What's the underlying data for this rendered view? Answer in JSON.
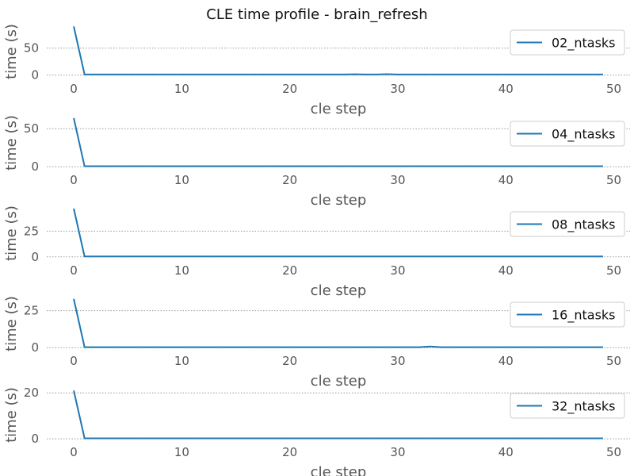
{
  "chart_data": {
    "type": "line",
    "title": "CLE time profile - brain_refresh",
    "xlabel": "cle step",
    "ylabel": "time (s)",
    "grid": "horizontal dotted",
    "legend_position": "top-right",
    "line_color": "#1f77b4",
    "x": [
      0,
      1,
      2,
      3,
      4,
      5,
      6,
      7,
      8,
      9,
      10,
      11,
      12,
      13,
      14,
      15,
      16,
      17,
      18,
      19,
      20,
      21,
      22,
      23,
      24,
      25,
      26,
      27,
      28,
      29,
      30,
      31,
      32,
      33,
      34,
      35,
      36,
      37,
      38,
      39,
      40,
      41,
      42,
      43,
      44,
      45,
      46,
      47,
      48,
      49
    ],
    "x_ticks": [
      0,
      10,
      20,
      30,
      40,
      50
    ],
    "xlim": [
      -2.5,
      51.5
    ],
    "panels": [
      {
        "series": [
          {
            "name": "02_ntasks",
            "values": [
              90,
              1,
              1,
              1,
              1,
              1,
              1,
              1,
              1,
              1,
              1,
              1,
              1,
              1,
              1,
              1,
              1,
              1,
              1,
              1,
              1,
              1,
              1,
              1,
              1,
              1,
              1.4,
              1,
              1,
              1.6,
              1,
              1,
              1,
              1,
              1,
              1,
              1,
              1,
              1,
              1,
              1,
              1,
              1,
              1,
              1,
              1,
              1,
              1,
              1,
              1
            ]
          }
        ],
        "ylim": [
          -5,
          95
        ],
        "y_ticks": [
          0,
          50
        ]
      },
      {
        "series": [
          {
            "name": "04_ntasks",
            "values": [
              64,
              0.6,
              0.6,
              0.6,
              0.6,
              0.6,
              0.6,
              0.6,
              0.6,
              0.6,
              0.6,
              0.6,
              0.6,
              0.6,
              0.6,
              0.6,
              0.6,
              0.6,
              0.6,
              0.6,
              0.6,
              0.6,
              0.6,
              0.6,
              0.6,
              0.6,
              0.6,
              0.6,
              0.6,
              0.6,
              0.6,
              0.6,
              0.6,
              0.6,
              0.6,
              0.6,
              0.6,
              0.6,
              0.6,
              0.6,
              0.6,
              0.6,
              0.6,
              0.6,
              0.6,
              0.6,
              0.6,
              0.6,
              0.6,
              0.6
            ]
          }
        ],
        "ylim": [
          -3,
          68
        ],
        "y_ticks": [
          0,
          50
        ]
      },
      {
        "series": [
          {
            "name": "08_ntasks",
            "values": [
              47,
              0.4,
              0.4,
              0.4,
              0.4,
              0.4,
              0.4,
              0.4,
              0.4,
              0.4,
              0.4,
              0.4,
              0.4,
              0.4,
              0.4,
              0.4,
              0.4,
              0.4,
              0.4,
              0.4,
              0.4,
              0.4,
              0.4,
              0.4,
              0.4,
              0.4,
              0.4,
              0.4,
              0.4,
              0.4,
              0.4,
              0.4,
              0.4,
              0.4,
              0.4,
              0.4,
              0.4,
              0.4,
              0.4,
              0.4,
              0.4,
              0.4,
              0.4,
              0.4,
              0.4,
              0.4,
              0.4,
              0.4,
              0.4,
              0.4
            ]
          }
        ],
        "ylim": [
          -2.5,
          50
        ],
        "y_ticks": [
          0,
          25
        ]
      },
      {
        "series": [
          {
            "name": "16_ntasks",
            "values": [
              33,
              0.3,
              0.3,
              0.3,
              0.3,
              0.3,
              0.3,
              0.3,
              0.3,
              0.3,
              0.3,
              0.3,
              0.3,
              0.3,
              0.3,
              0.3,
              0.3,
              0.3,
              0.3,
              0.3,
              0.3,
              0.3,
              0.3,
              0.3,
              0.3,
              0.3,
              0.3,
              0.3,
              0.3,
              0.3,
              0.3,
              0.3,
              0.3,
              0.8,
              0.3,
              0.3,
              0.3,
              0.3,
              0.3,
              0.3,
              0.3,
              0.3,
              0.3,
              0.3,
              0.3,
              0.3,
              0.3,
              0.3,
              0.3,
              0.3
            ]
          }
        ],
        "ylim": [
          -1.5,
          35
        ],
        "y_ticks": [
          0,
          25
        ]
      },
      {
        "series": [
          {
            "name": "32_ntasks",
            "values": [
              21,
              0.2,
              0.2,
              0.2,
              0.2,
              0.2,
              0.2,
              0.2,
              0.2,
              0.2,
              0.2,
              0.2,
              0.2,
              0.2,
              0.2,
              0.2,
              0.2,
              0.2,
              0.2,
              0.2,
              0.2,
              0.2,
              0.2,
              0.2,
              0.2,
              0.2,
              0.2,
              0.2,
              0.2,
              0.2,
              0.2,
              0.2,
              0.2,
              0.2,
              0.2,
              0.2,
              0.2,
              0.2,
              0.2,
              0.2,
              0.2,
              0.2,
              0.2,
              0.2,
              0.2,
              0.2,
              0.2,
              0.2,
              0.2,
              0.2
            ]
          }
        ],
        "ylim": [
          -1,
          22.5
        ],
        "y_ticks": [
          0,
          20
        ]
      }
    ]
  }
}
